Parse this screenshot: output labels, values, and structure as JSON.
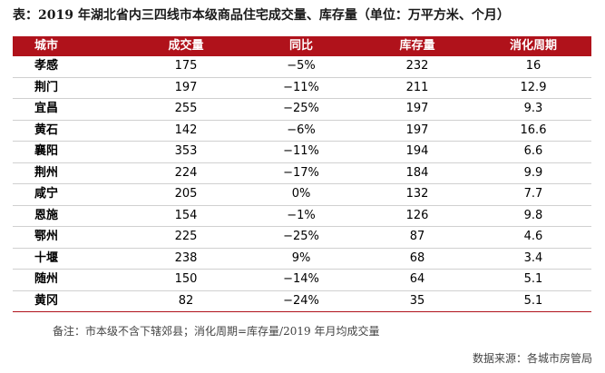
{
  "title": "表：2019 年湖北省内三四线市本级商品住宅成交量、库存量（单位：万平方米、个月）",
  "table": {
    "headers": [
      "城市",
      "成交量",
      "同比",
      "库存量",
      "消化周期"
    ],
    "rows": [
      [
        "孝感",
        "175",
        "−5%",
        "232",
        "16"
      ],
      [
        "荆门",
        "197",
        "−11%",
        "211",
        "12.9"
      ],
      [
        "宜昌",
        "255",
        "−25%",
        "197",
        "9.3"
      ],
      [
        "黄石",
        "142",
        "−6%",
        "197",
        "16.6"
      ],
      [
        "襄阳",
        "353",
        "−11%",
        "194",
        "6.6"
      ],
      [
        "荆州",
        "224",
        "−17%",
        "184",
        "9.9"
      ],
      [
        "咸宁",
        "205",
        "0%",
        "132",
        "7.7"
      ],
      [
        "恩施",
        "154",
        "−1%",
        "126",
        "9.8"
      ],
      [
        "鄂州",
        "225",
        "−25%",
        "87",
        "4.6"
      ],
      [
        "十堰",
        "238",
        "9%",
        "68",
        "3.4"
      ],
      [
        "随州",
        "150",
        "−14%",
        "64",
        "5.1"
      ],
      [
        "黄冈",
        "82",
        "−24%",
        "35",
        "5.1"
      ]
    ]
  },
  "note": "备注：市本级不含下辖郊县；消化周期=库存量/2019 年月均成交量",
  "source": "数据来源：各城市房管局",
  "colors": {
    "header_bg": "#b0121b",
    "header_text": "#ffffff"
  }
}
